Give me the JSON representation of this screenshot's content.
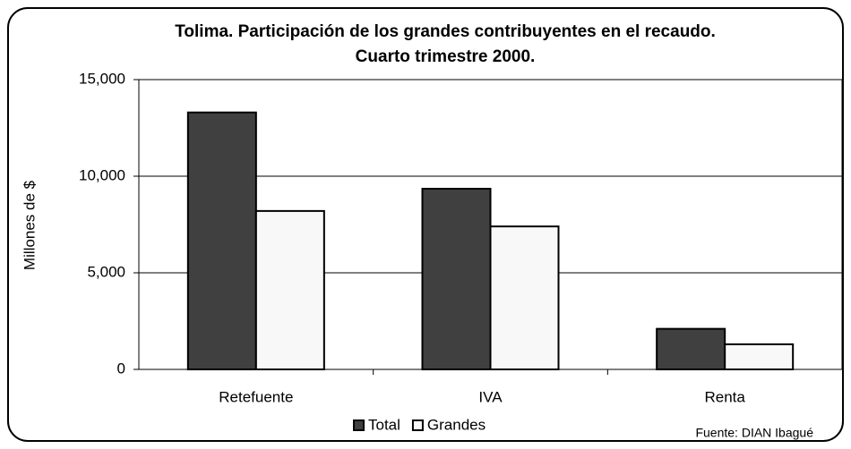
{
  "chart_data": {
    "type": "bar",
    "title": "Tolima. Participación de los grandes contribuyentes en el recaudo.",
    "subtitle": "Cuarto trimestre 2000.",
    "y_label": "Millones de $",
    "source": "Fuente: DIAN Ibagué",
    "categories": [
      "Retefuente",
      "IVA",
      "Renta"
    ],
    "series": [
      {
        "name": "Total",
        "color": "#404040",
        "values": [
          13300,
          9350,
          2100
        ]
      },
      {
        "name": "Grandes",
        "color": "#f8f8f8",
        "values": [
          8200,
          7400,
          1300
        ]
      }
    ],
    "ylim": [
      0,
      15000
    ],
    "yticks": [
      0,
      {
        "value": 5000,
        "label": "5,000"
      },
      {
        "value": 10000,
        "label": "10,000"
      },
      {
        "value": 15000,
        "label": "15,000"
      }
    ],
    "grid": true,
    "legend": "bottom"
  }
}
